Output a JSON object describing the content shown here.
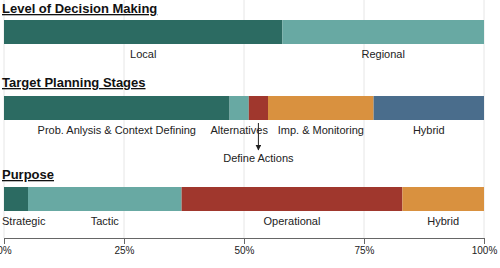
{
  "chart_data": [
    {
      "type": "bar",
      "orientation": "horizontal",
      "stacked": true,
      "title": "Level of Decision Making",
      "categories": [
        null
      ],
      "series": [
        {
          "name": "Local",
          "color": "#2c6b62",
          "values": [
            58
          ]
        },
        {
          "name": "Regional",
          "color": "#68a9a3",
          "values": [
            42
          ]
        }
      ],
      "xlim": [
        0,
        100
      ],
      "xticks": [
        {
          "value": 0,
          "label": "0%"
        },
        {
          "value": 25,
          "label": "25%"
        },
        {
          "value": 50,
          "label": "50%"
        },
        {
          "value": 75,
          "label": "75%"
        },
        {
          "value": 100,
          "label": "100%"
        }
      ],
      "grid": true,
      "tick_labels": false
    },
    {
      "type": "bar",
      "orientation": "horizontal",
      "stacked": true,
      "title": "Target Planning Stages",
      "categories": [
        null
      ],
      "series": [
        {
          "name": "Prob. Anlysis & Context Defining",
          "color": "#2c6b62",
          "values": [
            47
          ]
        },
        {
          "name": "Alternatives",
          "color": "#68a9a3",
          "values": [
            4
          ]
        },
        {
          "name": "Define Actions",
          "color": "#a0372d",
          "values": [
            4
          ]
        },
        {
          "name": "Imp. & Monitoring",
          "color": "#d9913f",
          "values": [
            22
          ]
        },
        {
          "name": "Hybrid",
          "color": "#4a6d8c",
          "values": [
            23
          ]
        }
      ],
      "xlim": [
        0,
        100
      ],
      "xticks": [
        {
          "value": 0,
          "label": "0%"
        },
        {
          "value": 25,
          "label": "25%"
        },
        {
          "value": 50,
          "label": "50%"
        },
        {
          "value": 75,
          "label": "75%"
        },
        {
          "value": 100,
          "label": "100%"
        }
      ],
      "grid": true,
      "tick_labels": false
    },
    {
      "type": "bar",
      "orientation": "horizontal",
      "stacked": true,
      "title": "Purpose",
      "categories": [
        null
      ],
      "series": [
        {
          "name": "Strategic",
          "color": "#2c6b62",
          "values": [
            5
          ]
        },
        {
          "name": "Tactic",
          "color": "#68a9a3",
          "values": [
            32
          ]
        },
        {
          "name": "Operational",
          "color": "#a0372d",
          "values": [
            46
          ]
        },
        {
          "name": "Hybrid",
          "color": "#d9913f",
          "values": [
            17
          ]
        }
      ],
      "xlim": [
        0,
        100
      ],
      "xticks": [
        {
          "value": 0,
          "label": "0%"
        },
        {
          "value": 25,
          "label": "25%"
        },
        {
          "value": 50,
          "label": "50%"
        },
        {
          "value": 75,
          "label": "75%"
        },
        {
          "value": 100,
          "label": "100%"
        }
      ],
      "grid": true
    }
  ]
}
